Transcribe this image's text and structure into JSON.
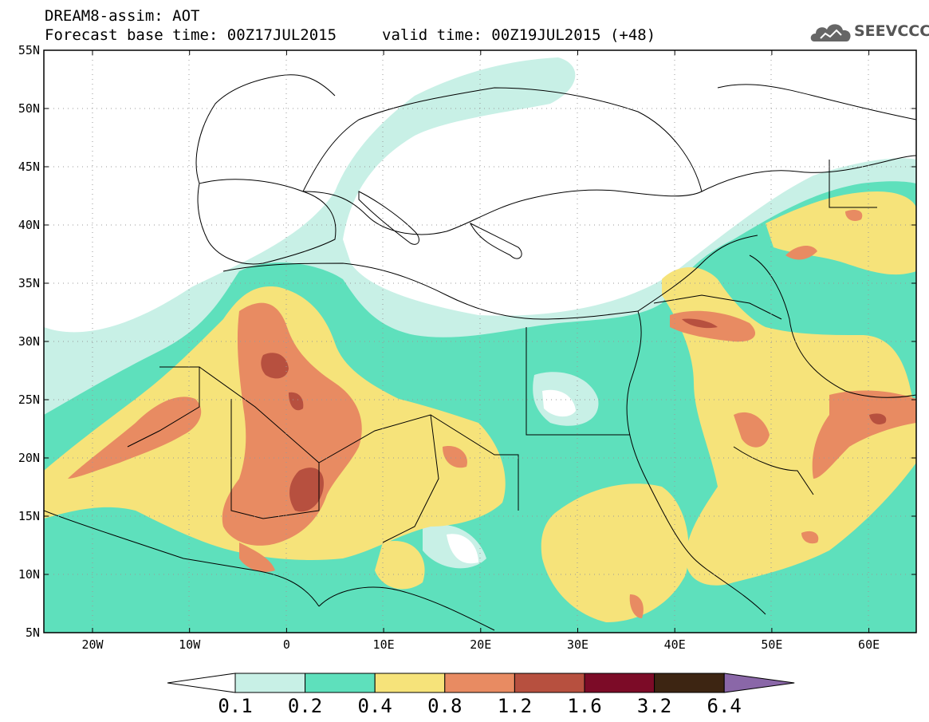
{
  "header": {
    "title": "DREAM8-assim: AOT",
    "base_time": "Forecast base time: 00Z17JUL2015",
    "valid_time": "valid time: 00Z19JUL2015 (+48)",
    "logo_text": "SEEVCCC"
  },
  "map": {
    "lat_labels": [
      "55N",
      "50N",
      "45N",
      "40N",
      "35N",
      "30N",
      "25N",
      "20N",
      "15N",
      "10N",
      "5N"
    ],
    "lon_labels": [
      "20W",
      "10W",
      "0",
      "10E",
      "20E",
      "30E",
      "40E",
      "50E",
      "60E"
    ]
  },
  "colorbar": {
    "labels": [
      "0.1",
      "0.2",
      "0.4",
      "0.8",
      "1.2",
      "1.6",
      "3.2",
      "6.4"
    ],
    "colors": [
      "#ffffff",
      "#c8f0e6",
      "#5ee0bc",
      "#f6e37a",
      "#e88b62",
      "#b7503f",
      "#7c0b27",
      "#3d2512",
      "#8a67a8"
    ]
  }
}
